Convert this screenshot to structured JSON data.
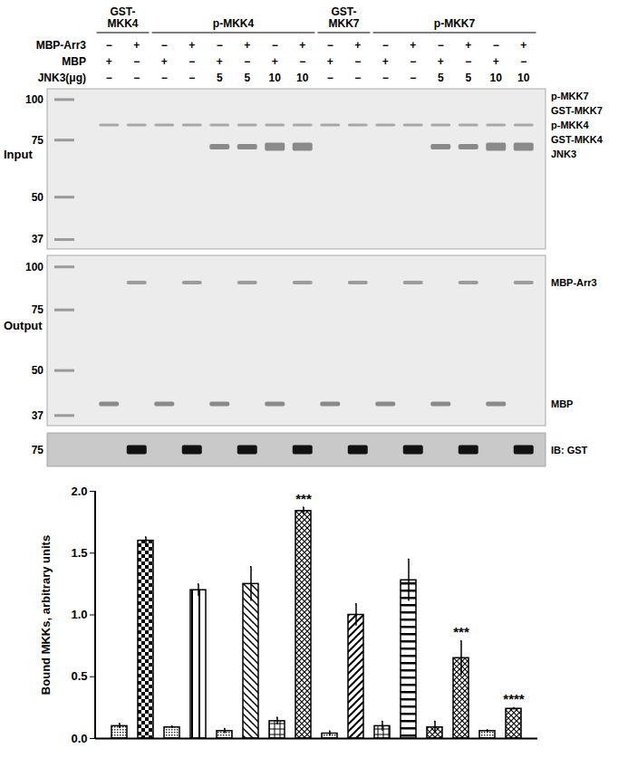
{
  "figure": {
    "lane_groups": [
      {
        "label": [
          "GST-",
          "MKK4"
        ],
        "lanes": 2
      },
      {
        "label": [
          "p-MKK4"
        ],
        "lanes": 6
      },
      {
        "label": [
          "GST-",
          "MKK7"
        ],
        "lanes": 2
      },
      {
        "label": [
          "p-MKK7"
        ],
        "lanes": 6
      }
    ],
    "conditions": [
      {
        "label": "MBP-Arr3",
        "values": [
          "−",
          "+",
          "−",
          "+",
          "−",
          "+",
          "−",
          "+",
          "−",
          "+",
          "−",
          "+",
          "−",
          "+",
          "−",
          "+"
        ]
      },
      {
        "label": "MBP",
        "values": [
          "+",
          "−",
          "+",
          "−",
          "+",
          "−",
          "+",
          "−",
          "+",
          "−",
          "+",
          "−",
          "+",
          "−",
          "+",
          "−"
        ]
      },
      {
        "label": "JNK3(μg)",
        "values": [
          "−",
          "−",
          "−",
          "−",
          "5",
          "5",
          "10",
          "10",
          "−",
          "−",
          "−",
          "−",
          "5",
          "5",
          "10",
          "10"
        ]
      }
    ],
    "panels": [
      {
        "label": "Input",
        "markers": [
          100,
          75,
          50,
          37
        ],
        "band_labels": [
          "p-MKK7",
          "GST-MKK7",
          "p-MKK4",
          "GST-MKK4",
          "JNK3"
        ]
      },
      {
        "label": "Output",
        "markers": [
          100,
          75,
          50,
          37
        ],
        "band_labels": [
          "MBP-Arr3",
          "MBP"
        ]
      },
      {
        "markers": [
          75
        ],
        "band_labels": [
          "IB: GST"
        ]
      }
    ]
  },
  "chart_data": {
    "type": "bar",
    "ylabel": "Bound MKKs, arbitrary units",
    "categories": [
      null,
      null,
      null,
      null,
      null,
      null,
      null,
      null,
      null,
      null,
      null,
      null,
      null,
      null,
      null,
      null
    ],
    "values": [
      0.1,
      1.6,
      0.09,
      1.2,
      0.06,
      1.25,
      0.14,
      1.84,
      0.04,
      1.0,
      0.1,
      1.28,
      0.09,
      0.65,
      0.06,
      0.24
    ],
    "error": [
      0.02,
      0.03,
      0.01,
      0.05,
      0.02,
      0.14,
      0.03,
      0.03,
      0.02,
      0.09,
      0.04,
      0.17,
      0.05,
      0.14,
      0.01,
      0.01
    ],
    "significance": [
      null,
      null,
      null,
      null,
      null,
      null,
      null,
      "***",
      null,
      null,
      null,
      null,
      null,
      "***",
      null,
      "****"
    ],
    "ylim": [
      0,
      2
    ],
    "yticks": [
      0,
      0.5,
      1,
      1.5,
      2
    ],
    "tick_labels": "y"
  }
}
